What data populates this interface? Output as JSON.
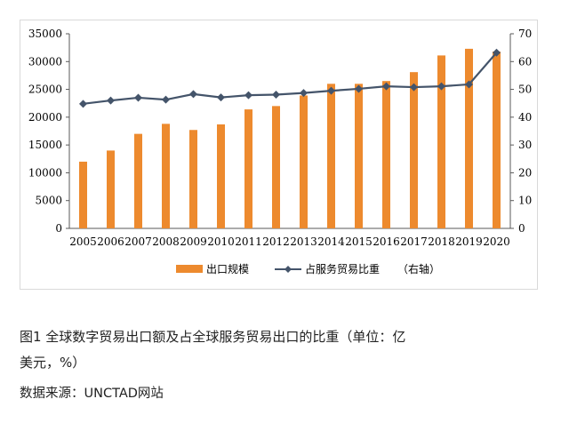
{
  "chart_data": {
    "type": "bar+line",
    "categories": [
      "2005",
      "2006",
      "2007",
      "2008",
      "2009",
      "2010",
      "2011",
      "2012",
      "2013",
      "2014",
      "2015",
      "2016",
      "2017",
      "2018",
      "2019",
      "2020"
    ],
    "series": [
      {
        "name": "出口规模",
        "kind": "bar",
        "axis": "left",
        "color": "#ED8A2E",
        "values": [
          12000,
          14000,
          17000,
          18800,
          17700,
          18700,
          21400,
          22000,
          23900,
          26000,
          26000,
          26500,
          28100,
          31100,
          32300,
          31800
        ]
      },
      {
        "name": "占服务贸易比重",
        "kind": "line",
        "axis": "right",
        "color": "#44546A",
        "values": [
          44.8,
          46.0,
          47.0,
          46.3,
          48.3,
          47.1,
          47.9,
          48.1,
          48.7,
          49.5,
          50.2,
          51.1,
          50.8,
          51.1,
          51.8,
          63.2
        ]
      }
    ],
    "y_left": {
      "min": 0,
      "max": 35000,
      "step": 5000,
      "ticks": [
        "0",
        "5000",
        "10000",
        "15000",
        "20000",
        "25000",
        "30000",
        "35000"
      ]
    },
    "y_right": {
      "min": 0,
      "max": 70,
      "step": 10,
      "ticks": [
        "0",
        "10",
        "20",
        "30",
        "40",
        "50",
        "60",
        "70"
      ]
    },
    "legend": {
      "position": "bottom",
      "items": [
        "出口规模",
        "占服务贸易比重"
      ],
      "right_axis_note": "（右轴）"
    },
    "grid": false
  },
  "caption": {
    "line1": "图1    全球数字贸易出口额及占全球服务贸易出口的比重（单位：亿",
    "line2": "美元，%）",
    "source": "数据来源：UNCTAD网站"
  }
}
